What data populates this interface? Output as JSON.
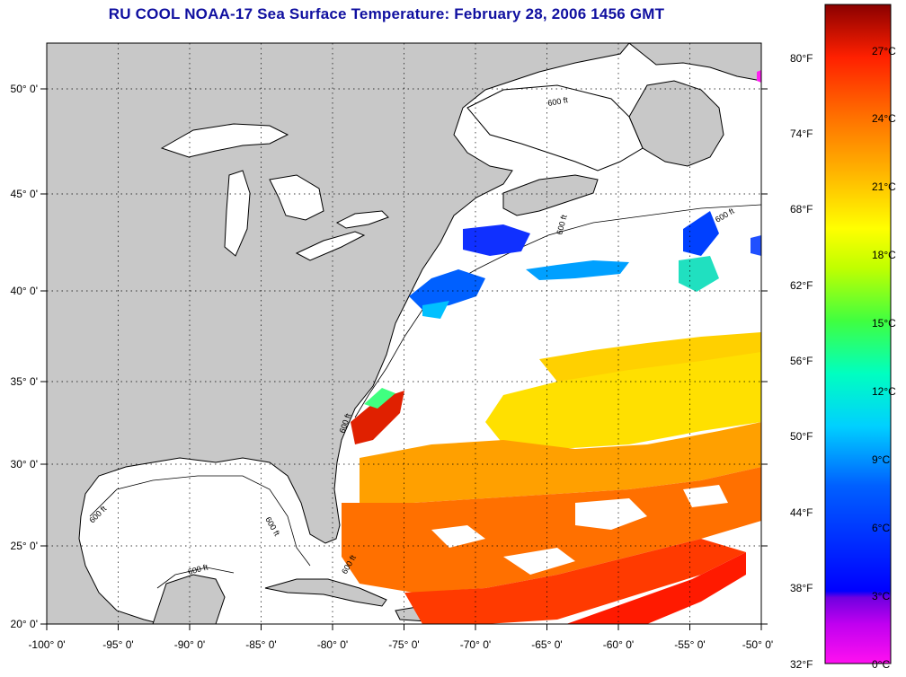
{
  "title": "RU COOL  NOAA-17  Sea Surface Temperature:  February 28, 2006 1456 GMT",
  "map": {
    "lon_range": [
      -100,
      -50
    ],
    "lat_range": [
      20,
      52.5
    ],
    "lon_ticks": [
      "-100° 0'",
      "-95° 0'",
      "-90° 0'",
      "-85° 0'",
      "-80° 0'",
      "-75° 0'",
      "-70° 0'",
      "-65° 0'",
      "-60° 0'",
      "-55° 0'",
      "-50° 0'"
    ],
    "lat_ticks": [
      "20° 0'",
      "25° 0'",
      "30° 0'",
      "35° 0'",
      "40° 0'",
      "45° 0'",
      "50° 0'"
    ],
    "land_color": "#c8c8c8",
    "ocean_color": "#ffffff",
    "isobath_labels": [
      "600 ft",
      "600 ft",
      "600 ft",
      "600 ft",
      "600 ft",
      "600 ft",
      "600 ft",
      "600 ft"
    ]
  },
  "colorbar": {
    "fahrenheit_labels": [
      "80°F",
      "74°F",
      "68°F",
      "62°F",
      "56°F",
      "50°F",
      "44°F",
      "38°F",
      "32°F"
    ],
    "celsius_labels": [
      "27°C",
      "24°C",
      "21°C",
      "18°C",
      "15°C",
      "12°C",
      "9°C",
      "6°C",
      "3°C",
      "0°C"
    ],
    "colors": [
      "#ff00e0",
      "#8000ff",
      "#0000ff",
      "#0080ff",
      "#00e0ff",
      "#00ffa0",
      "#80ff00",
      "#ffff00",
      "#ffc000",
      "#ff8000",
      "#ff3000",
      "#e00000",
      "#a00000"
    ]
  }
}
